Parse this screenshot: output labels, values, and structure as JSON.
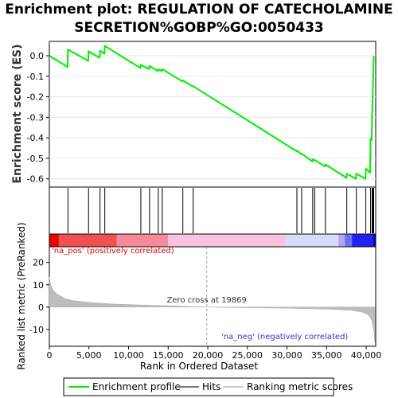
{
  "chart_data": {
    "type": "line",
    "title_line1": "Enrichment plot: REGULATION OF CATECHOLAMINE",
    "title_line2": "SECRETION%GOBP%GO:0050433",
    "es_panel": {
      "ylabel": "Enrichment score (ES)",
      "ylim": [
        -0.64,
        0.07
      ],
      "yticks": [
        0.0,
        -0.1,
        -0.2,
        -0.3,
        -0.4,
        -0.5,
        -0.6
      ],
      "ytick_labels": [
        "0.0",
        "-0.1",
        "-0.2",
        "-0.3",
        "-0.4",
        "-0.5",
        "-0.6"
      ],
      "color": "#00ee00",
      "points": [
        [
          0,
          0.0
        ],
        [
          2300,
          -0.055
        ],
        [
          2350,
          0.03
        ],
        [
          4900,
          -0.025
        ],
        [
          4950,
          0.022
        ],
        [
          6350,
          -0.01
        ],
        [
          6400,
          0.025
        ],
        [
          6950,
          0.01
        ],
        [
          7000,
          0.048
        ],
        [
          11500,
          -0.06
        ],
        [
          11550,
          -0.045
        ],
        [
          12600,
          -0.065
        ],
        [
          12650,
          -0.05
        ],
        [
          13700,
          -0.075
        ],
        [
          13750,
          -0.065
        ],
        [
          14200,
          -0.075
        ],
        [
          14250,
          -0.065
        ],
        [
          16800,
          -0.125
        ],
        [
          16850,
          -0.12
        ],
        [
          18100,
          -0.15
        ],
        [
          18150,
          -0.148
        ],
        [
          31200,
          -0.465
        ],
        [
          31250,
          -0.462
        ],
        [
          31800,
          -0.48
        ],
        [
          31850,
          -0.477
        ],
        [
          33200,
          -0.515
        ],
        [
          33250,
          -0.505
        ],
        [
          33450,
          -0.51
        ],
        [
          33500,
          -0.508
        ],
        [
          34800,
          -0.54
        ],
        [
          34850,
          -0.53
        ],
        [
          37500,
          -0.595
        ],
        [
          37550,
          -0.575
        ],
        [
          38700,
          -0.6
        ],
        [
          38750,
          -0.575
        ],
        [
          39900,
          -0.6
        ],
        [
          39950,
          -0.55
        ],
        [
          40500,
          -0.57
        ],
        [
          40550,
          -0.405
        ],
        [
          40700,
          -0.41
        ],
        [
          40750,
          -0.29
        ],
        [
          40850,
          -0.15
        ],
        [
          40950,
          0.0
        ]
      ]
    },
    "hits": {
      "label": "Hits",
      "positions": [
        2350,
        4950,
        6400,
        7000,
        11550,
        12650,
        13750,
        14250,
        16850,
        18150,
        31250,
        31850,
        33250,
        33500,
        34850,
        37550,
        38750,
        39950,
        40550,
        40750,
        40850,
        40950
      ]
    },
    "ranking_bar": {
      "segments": [
        {
          "start": 0,
          "end": 1200,
          "color": "#ee0000"
        },
        {
          "start": 1200,
          "end": 8500,
          "color": "#f25050"
        },
        {
          "start": 8500,
          "end": 15000,
          "color": "#f68a9a"
        },
        {
          "start": 15000,
          "end": 29800,
          "color": "#f9c2e2"
        },
        {
          "start": 29800,
          "end": 36500,
          "color": "#d9d9fb"
        },
        {
          "start": 36500,
          "end": 37300,
          "color": "#a8a8f4"
        },
        {
          "start": 37300,
          "end": 38200,
          "color": "#7070ee"
        },
        {
          "start": 38200,
          "end": 40900,
          "color": "#2222ee"
        },
        {
          "start": 40900,
          "end": 41200,
          "color": "#0000cc"
        }
      ]
    },
    "metric_panel": {
      "ylabel": "Ranked list metric (PreRanked)",
      "ylim": [
        -17.5,
        27
      ],
      "yticks": [
        20,
        10,
        0,
        -10
      ],
      "ytick_labels": [
        "20",
        "10",
        "0",
        "-10"
      ],
      "profile": [
        [
          0,
          13.5
        ],
        [
          150,
          10
        ],
        [
          500,
          7.5
        ],
        [
          1000,
          5.8
        ],
        [
          2000,
          3.8
        ],
        [
          3000,
          2.9
        ],
        [
          5000,
          2.1
        ],
        [
          8000,
          1.4
        ],
        [
          12000,
          0.9
        ],
        [
          16000,
          0.5
        ],
        [
          19869,
          0.0
        ],
        [
          24000,
          -0.2
        ],
        [
          30000,
          -0.5
        ],
        [
          35000,
          -0.9
        ],
        [
          38000,
          -1.4
        ],
        [
          39500,
          -2.2
        ],
        [
          40300,
          -3.5
        ],
        [
          40700,
          -6.0
        ],
        [
          40950,
          -10.0
        ],
        [
          41100,
          -16.0
        ]
      ],
      "zero_cross_label": "Zero cross at 19869",
      "zero_cross": 19869,
      "pos_label": "'na_pos' (positively correlated)",
      "neg_label": "'na_neg' (negatively correlated)",
      "pos_color": "#dd0000",
      "neg_color": "#3333cc"
    },
    "xaxis": {
      "xlabel": "Rank in Ordered Dataset",
      "xlim": [
        0,
        41200
      ],
      "xticks": [
        0,
        5000,
        10000,
        15000,
        20000,
        25000,
        30000,
        35000,
        40000
      ],
      "xtick_labels": [
        "0",
        "5,000",
        "10,000",
        "15,000",
        "20,000",
        "25,000",
        "30,000",
        "35,000",
        "40,000"
      ]
    },
    "legend": {
      "items": [
        {
          "label": "Enrichment profile",
          "color": "#00ee00",
          "kind": "line"
        },
        {
          "label": "Hits",
          "color": "#777777",
          "kind": "line"
        },
        {
          "label": "Ranking metric scores",
          "color": "#cccccc",
          "kind": "line"
        }
      ]
    }
  }
}
